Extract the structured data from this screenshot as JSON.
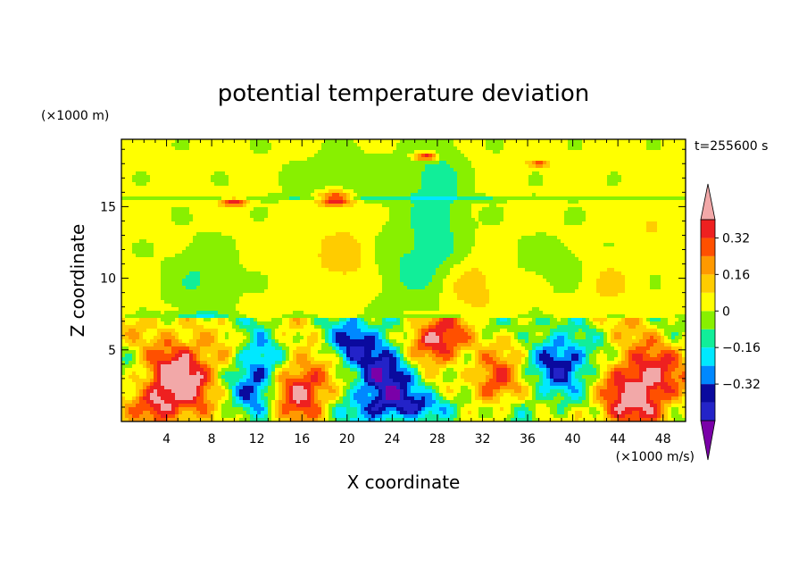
{
  "chart_data": {
    "type": "heatmap",
    "title": "potential temperature deviation",
    "time_label": "t=255600 s",
    "xlabel": "X coordinate",
    "ylabel": "Z coordinate",
    "x_unit": "(×1000 m/s)",
    "y_unit": "(×1000 m)",
    "xlim": [
      0,
      50
    ],
    "ylim": [
      0,
      19.7
    ],
    "x_ticks": [
      4,
      8,
      12,
      16,
      20,
      24,
      28,
      32,
      36,
      40,
      44,
      48
    ],
    "y_ticks": [
      5,
      10,
      15
    ],
    "colorbar": {
      "levels": [
        -0.48,
        -0.4,
        -0.32,
        -0.24,
        -0.16,
        -0.08,
        0,
        0.08,
        0.16,
        0.24,
        0.32,
        0.4
      ],
      "colors": [
        "#7a00a8",
        "#2323c8",
        "#0a0a9e",
        "#0088ff",
        "#00e8ff",
        "#11ee99",
        "#88f000",
        "#ffff00",
        "#ffcc00",
        "#ff9900",
        "#ff5000",
        "#ee2020",
        "#f2a8a8"
      ],
      "tick_labels": [
        "0.32",
        "0.16",
        "0",
        "−0.16",
        "−0.32"
      ],
      "tick_values": [
        0.32,
        0.16,
        0,
        -0.16,
        -0.32
      ]
    }
  }
}
